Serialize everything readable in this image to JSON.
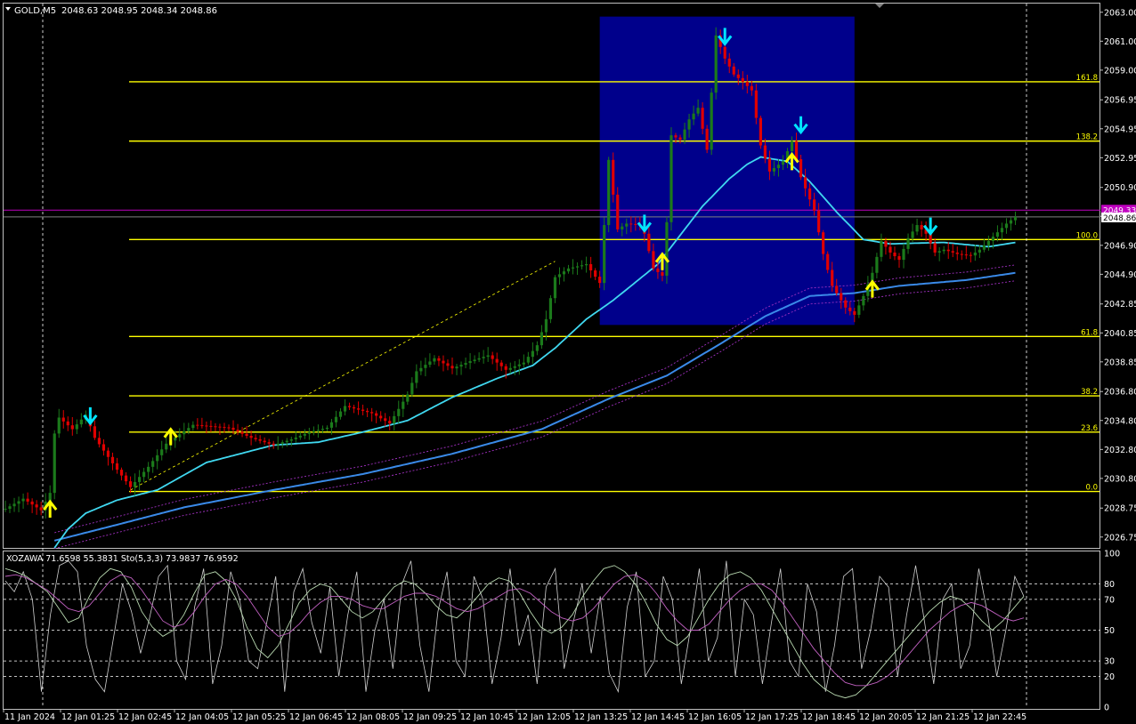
{
  "header": {
    "symbol": "GOLD,M5",
    "ohlc": "2048.63 2048.95 2048.34 2048.86"
  },
  "colors": {
    "background": "#000000",
    "frame": "#c0c0c0",
    "bull": "#1b7a1b",
    "bear": "#e00000",
    "fib": "#ffff00",
    "fast_ma": "#40d8f0",
    "slow_ma": "#3a8ae8",
    "envelope": "#a030c0",
    "box": "#00008b",
    "arrow_up": "#ffff00",
    "arrow_down": "#00e5ff",
    "price_line": "#c000c0",
    "bid_line": "#808080",
    "stoch_main": "#d0d0d0",
    "stoch_signal": "#c060c0",
    "ind_line": "#cfcfcf",
    "text": "#ffffff"
  },
  "chart_data": [
    {
      "type": "candlestick",
      "symbol": "GOLD",
      "timeframe": "M5",
      "ylim": [
        2026.0,
        2063.6
      ],
      "y_ticks": [
        "2063.00",
        "2061.00",
        "2059.00",
        "2056.95",
        "2054.95",
        "2052.95",
        "2050.90",
        "2048.90",
        "2046.90",
        "2044.90",
        "2042.85",
        "2040.85",
        "2038.85",
        "2036.80",
        "2034.80",
        "2032.80",
        "2030.80",
        "2028.75",
        "2026.75"
      ],
      "x_ticks": [
        "11 Jan 2024",
        "12 Jan 01:25",
        "12 Jan 02:45",
        "12 Jan 04:05",
        "12 Jan 05:25",
        "12 Jan 06:45",
        "12 Jan 08:05",
        "12 Jan 09:25",
        "12 Jan 10:45",
        "12 Jan 12:05",
        "12 Jan 13:25",
        "12 Jan 14:45",
        "12 Jan 16:05",
        "12 Jan 17:25",
        "12 Jan 18:45",
        "12 Jan 20:05",
        "12 Jan 21:25",
        "12 Jan 22:45"
      ],
      "price_key": [
        {
          "t": 0,
          "p": 2028.7
        },
        {
          "t": 4,
          "p": 2029.4
        },
        {
          "t": 8,
          "p": 2028.6
        },
        {
          "t": 10,
          "p": 2029.8
        },
        {
          "t": 11,
          "p": 2033.9
        },
        {
          "t": 12,
          "p": 2035.0
        },
        {
          "t": 15,
          "p": 2034.2
        },
        {
          "t": 18,
          "p": 2035.2
        },
        {
          "t": 20,
          "p": 2033.6
        },
        {
          "t": 25,
          "p": 2031.4
        },
        {
          "t": 28,
          "p": 2030.2
        },
        {
          "t": 32,
          "p": 2031.6
        },
        {
          "t": 36,
          "p": 2033.2
        },
        {
          "t": 42,
          "p": 2034.5
        },
        {
          "t": 50,
          "p": 2034.3
        },
        {
          "t": 55,
          "p": 2033.6
        },
        {
          "t": 60,
          "p": 2033.1
        },
        {
          "t": 64,
          "p": 2033.5
        },
        {
          "t": 68,
          "p": 2034.0
        },
        {
          "t": 72,
          "p": 2034.3
        },
        {
          "t": 76,
          "p": 2035.8
        },
        {
          "t": 82,
          "p": 2035.3
        },
        {
          "t": 86,
          "p": 2034.6
        },
        {
          "t": 90,
          "p": 2036.6
        },
        {
          "t": 92,
          "p": 2038.2
        },
        {
          "t": 96,
          "p": 2039.1
        },
        {
          "t": 100,
          "p": 2038.4
        },
        {
          "t": 104,
          "p": 2038.9
        },
        {
          "t": 108,
          "p": 2039.3
        },
        {
          "t": 112,
          "p": 2038.3
        },
        {
          "t": 116,
          "p": 2038.8
        },
        {
          "t": 119,
          "p": 2040.0
        },
        {
          "t": 121,
          "p": 2041.8
        },
        {
          "t": 123,
          "p": 2044.7
        },
        {
          "t": 126,
          "p": 2045.3
        },
        {
          "t": 130,
          "p": 2045.6
        },
        {
          "t": 133,
          "p": 2044.3
        },
        {
          "t": 134,
          "p": 2048.3
        },
        {
          "t": 135,
          "p": 2052.8
        },
        {
          "t": 137,
          "p": 2048.0
        },
        {
          "t": 139,
          "p": 2048.4
        },
        {
          "t": 142,
          "p": 2048.3
        },
        {
          "t": 143,
          "p": 2047.7
        },
        {
          "t": 145,
          "p": 2045.3
        },
        {
          "t": 147,
          "p": 2044.8
        },
        {
          "t": 148,
          "p": 2048.5
        },
        {
          "t": 149,
          "p": 2054.5
        },
        {
          "t": 151,
          "p": 2054.2
        },
        {
          "t": 153,
          "p": 2055.6
        },
        {
          "t": 155,
          "p": 2056.4
        },
        {
          "t": 157,
          "p": 2053.5
        },
        {
          "t": 159,
          "p": 2061.4
        },
        {
          "t": 161,
          "p": 2059.8
        },
        {
          "t": 163,
          "p": 2058.7
        },
        {
          "t": 165,
          "p": 2058.2
        },
        {
          "t": 167,
          "p": 2057.6
        },
        {
          "t": 169,
          "p": 2053.8
        },
        {
          "t": 171,
          "p": 2052.0
        },
        {
          "t": 174,
          "p": 2052.7
        },
        {
          "t": 176,
          "p": 2054.1
        },
        {
          "t": 178,
          "p": 2051.6
        },
        {
          "t": 181,
          "p": 2049.3
        },
        {
          "t": 183,
          "p": 2046.3
        },
        {
          "t": 185,
          "p": 2044.1
        },
        {
          "t": 188,
          "p": 2042.6
        },
        {
          "t": 190,
          "p": 2042.1
        },
        {
          "t": 192,
          "p": 2043.4
        },
        {
          "t": 194,
          "p": 2045.0
        },
        {
          "t": 196,
          "p": 2047.2
        },
        {
          "t": 198,
          "p": 2046.4
        },
        {
          "t": 200,
          "p": 2045.9
        },
        {
          "t": 202,
          "p": 2047.4
        },
        {
          "t": 204,
          "p": 2048.3
        },
        {
          "t": 206,
          "p": 2047.7
        },
        {
          "t": 208,
          "p": 2046.4
        },
        {
          "t": 210,
          "p": 2046.6
        },
        {
          "t": 213,
          "p": 2046.3
        },
        {
          "t": 216,
          "p": 2046.2
        },
        {
          "t": 218,
          "p": 2046.6
        },
        {
          "t": 221,
          "p": 2047.5
        },
        {
          "t": 224,
          "p": 2048.4
        },
        {
          "t": 226,
          "p": 2048.86
        }
      ],
      "fib_levels": [
        {
          "label": "161.8",
          "price": 2058.2
        },
        {
          "label": "138.2",
          "price": 2054.1
        },
        {
          "label": "100.0",
          "price": 2047.3
        },
        {
          "label": "61.8",
          "price": 2040.6
        },
        {
          "label": "38.2",
          "price": 2036.5
        },
        {
          "label": "23.6",
          "price": 2034.0
        },
        {
          "label": "0.0",
          "price": 2029.9
        }
      ],
      "fast_ma_key": [
        {
          "t": 11,
          "p": 2026.0
        },
        {
          "t": 14,
          "p": 2027.3
        },
        {
          "t": 18,
          "p": 2028.4
        },
        {
          "t": 25,
          "p": 2029.3
        },
        {
          "t": 34,
          "p": 2030.0
        },
        {
          "t": 45,
          "p": 2031.9
        },
        {
          "t": 60,
          "p": 2033.1
        },
        {
          "t": 70,
          "p": 2033.3
        },
        {
          "t": 80,
          "p": 2034.0
        },
        {
          "t": 90,
          "p": 2034.8
        },
        {
          "t": 100,
          "p": 2036.4
        },
        {
          "t": 110,
          "p": 2037.7
        },
        {
          "t": 118,
          "p": 2038.6
        },
        {
          "t": 123,
          "p": 2039.8
        },
        {
          "t": 130,
          "p": 2041.8
        },
        {
          "t": 136,
          "p": 2043.1
        },
        {
          "t": 142,
          "p": 2044.6
        },
        {
          "t": 146,
          "p": 2045.6
        },
        {
          "t": 150,
          "p": 2047.2
        },
        {
          "t": 156,
          "p": 2049.6
        },
        {
          "t": 162,
          "p": 2051.5
        },
        {
          "t": 166,
          "p": 2052.5
        },
        {
          "t": 169,
          "p": 2053.0
        },
        {
          "t": 175,
          "p": 2052.7
        },
        {
          "t": 180,
          "p": 2051.3
        },
        {
          "t": 186,
          "p": 2049.2
        },
        {
          "t": 192,
          "p": 2047.3
        },
        {
          "t": 198,
          "p": 2047.0
        },
        {
          "t": 210,
          "p": 2047.1
        },
        {
          "t": 220,
          "p": 2046.8
        },
        {
          "t": 226,
          "p": 2047.1
        }
      ],
      "slow_ma_key": [
        {
          "t": 11,
          "p": 2026.5
        },
        {
          "t": 25,
          "p": 2027.6
        },
        {
          "t": 40,
          "p": 2028.8
        },
        {
          "t": 60,
          "p": 2030.0
        },
        {
          "t": 80,
          "p": 2031.1
        },
        {
          "t": 100,
          "p": 2032.5
        },
        {
          "t": 120,
          "p": 2034.2
        },
        {
          "t": 135,
          "p": 2036.3
        },
        {
          "t": 148,
          "p": 2037.9
        },
        {
          "t": 160,
          "p": 2040.1
        },
        {
          "t": 170,
          "p": 2042.0
        },
        {
          "t": 180,
          "p": 2043.4
        },
        {
          "t": 190,
          "p": 2043.6
        },
        {
          "t": 200,
          "p": 2044.1
        },
        {
          "t": 215,
          "p": 2044.5
        },
        {
          "t": 226,
          "p": 2045.0
        }
      ],
      "envelope_offset": 0.55,
      "dashed_trendline": [
        {
          "t": 28,
          "p": 2030.0
        },
        {
          "t": 123,
          "p": 2045.8
        }
      ],
      "highlight_box": {
        "t1": 133,
        "t2": 190,
        "p1": 2041.4,
        "p2": 2062.7
      },
      "arrows": [
        {
          "dir": "up",
          "t": 10,
          "p": 2028.7
        },
        {
          "dir": "down",
          "t": 19,
          "p": 2035.1
        },
        {
          "dir": "up",
          "t": 37,
          "p": 2033.7
        },
        {
          "dir": "down",
          "t": 143,
          "p": 2048.4
        },
        {
          "dir": "up",
          "t": 147,
          "p": 2045.8
        },
        {
          "dir": "down",
          "t": 161,
          "p": 2061.3
        },
        {
          "dir": "up",
          "t": 176,
          "p": 2052.7
        },
        {
          "dir": "down",
          "t": 178,
          "p": 2055.2
        },
        {
          "dir": "up",
          "t": 194,
          "p": 2043.9
        },
        {
          "dir": "down",
          "t": 207,
          "p": 2048.2
        }
      ],
      "current_price_label": "2049.33",
      "current_price": 2049.33,
      "bid_label": "2048.86",
      "bid_price": 2048.86
    },
    {
      "type": "line",
      "label": "XOZAWA 71.6598 55.3831  Sto(5,3,3) 73.9837 76.9592",
      "ylim": [
        0,
        100
      ],
      "y_ticks": [
        "100",
        "80",
        "70",
        "50",
        "30",
        "20",
        "0"
      ],
      "levels": [
        80,
        70,
        50,
        30,
        20
      ],
      "series": [
        {
          "style": "white-thin",
          "values": [
            82,
            75,
            88,
            70,
            10,
            60,
            92,
            95,
            88,
            40,
            18,
            10,
            45,
            80,
            62,
            35,
            58,
            85,
            92,
            30,
            18,
            65,
            90,
            15,
            40,
            88,
            70,
            30,
            25,
            55,
            85,
            10,
            75,
            90,
            55,
            35,
            78,
            20,
            60,
            88,
            10,
            50,
            70,
            25,
            80,
            95,
            40,
            10,
            62,
            88,
            30,
            20,
            85,
            70,
            15,
            45,
            90,
            40,
            60,
            15,
            78,
            90,
            25,
            55,
            80,
            35,
            72,
            22,
            10,
            65,
            88,
            20,
            30,
            85,
            70,
            15,
            50,
            90,
            30,
            45,
            95,
            20,
            70,
            60,
            15,
            55,
            90,
            30,
            20,
            80,
            62,
            10,
            40,
            85,
            90,
            25,
            50,
            85,
            78,
            20,
            60,
            92,
            55,
            15,
            70,
            80,
            25,
            40,
            90,
            60,
            20,
            50,
            85,
            72
          ]
        },
        {
          "style": "silver",
          "values": [
            90,
            88,
            85,
            80,
            75,
            65,
            55,
            58,
            72,
            84,
            90,
            88,
            78,
            62,
            52,
            46,
            50,
            60,
            74,
            86,
            88,
            82,
            70,
            52,
            38,
            32,
            40,
            54,
            68,
            76,
            80,
            78,
            70,
            62,
            58,
            62,
            70,
            78,
            82,
            80,
            74,
            66,
            60,
            58,
            64,
            72,
            80,
            84,
            82,
            74,
            62,
            52,
            48,
            52,
            60,
            72,
            82,
            90,
            92,
            88,
            80,
            68,
            54,
            44,
            40,
            46,
            58,
            70,
            80,
            86,
            88,
            84,
            76,
            64,
            52,
            40,
            28,
            18,
            12,
            8,
            6,
            8,
            14,
            22,
            30,
            38,
            46,
            54,
            62,
            68,
            72,
            70,
            64,
            56,
            50,
            56,
            64,
            72
          ]
        },
        {
          "style": "signal",
          "values": [
            85,
            86,
            84,
            80,
            76,
            70,
            64,
            62,
            66,
            74,
            82,
            86,
            84,
            76,
            66,
            56,
            52,
            54,
            62,
            72,
            80,
            83,
            80,
            72,
            62,
            52,
            46,
            48,
            54,
            62,
            68,
            72,
            72,
            70,
            66,
            64,
            64,
            68,
            72,
            74,
            74,
            72,
            68,
            64,
            62,
            64,
            68,
            72,
            76,
            77,
            74,
            68,
            62,
            58,
            56,
            58,
            64,
            72,
            80,
            85,
            86,
            82,
            74,
            64,
            56,
            50,
            50,
            54,
            62,
            70,
            76,
            80,
            80,
            76,
            68,
            58,
            48,
            38,
            30,
            22,
            16,
            14,
            14,
            16,
            20,
            26,
            34,
            42,
            50,
            56,
            62,
            66,
            68,
            66,
            62,
            58,
            56,
            58
          ]
        }
      ]
    }
  ]
}
